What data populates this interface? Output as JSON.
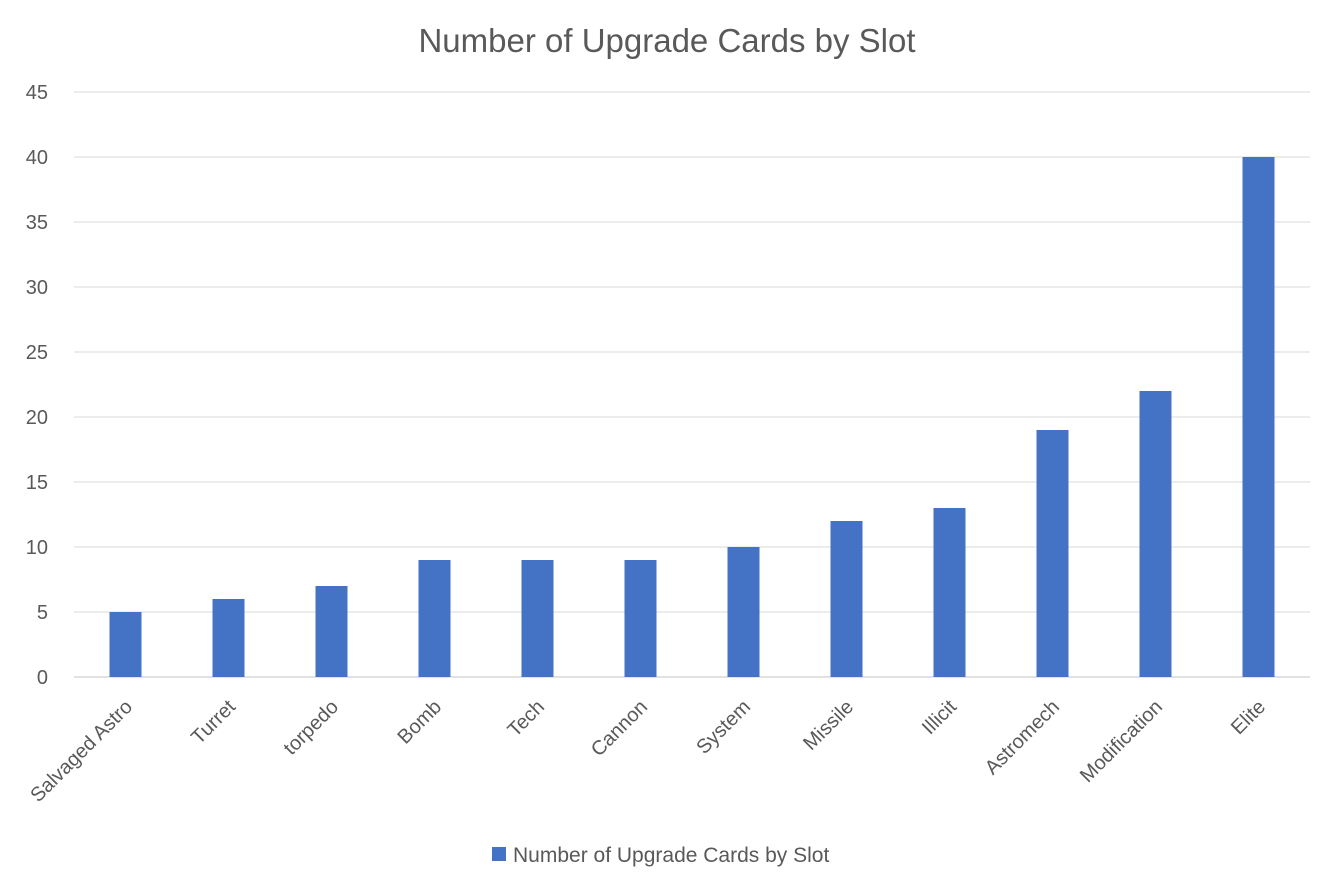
{
  "chart_data": {
    "type": "bar",
    "title": "Number of Upgrade Cards by Slot",
    "xlabel": "",
    "ylabel": "",
    "categories": [
      "Salvaged Astro",
      "Turret",
      "torpedo",
      "Bomb",
      "Tech",
      "Cannon",
      "System",
      "Missile",
      "Illicit",
      "Astromech",
      "Modification",
      "Elite"
    ],
    "series": [
      {
        "name": "Number of Upgrade Cards by Slot",
        "values": [
          5,
          6,
          7,
          9,
          9,
          9,
          10,
          12,
          13,
          19,
          22,
          40
        ],
        "color": "#4472c4"
      }
    ],
    "ylim": [
      0,
      45
    ],
    "yticks": [
      0,
      5,
      10,
      15,
      20,
      25,
      30,
      35,
      40,
      45
    ],
    "grid": true,
    "gridColor": "#d9d9d9",
    "legend": "bottom"
  }
}
